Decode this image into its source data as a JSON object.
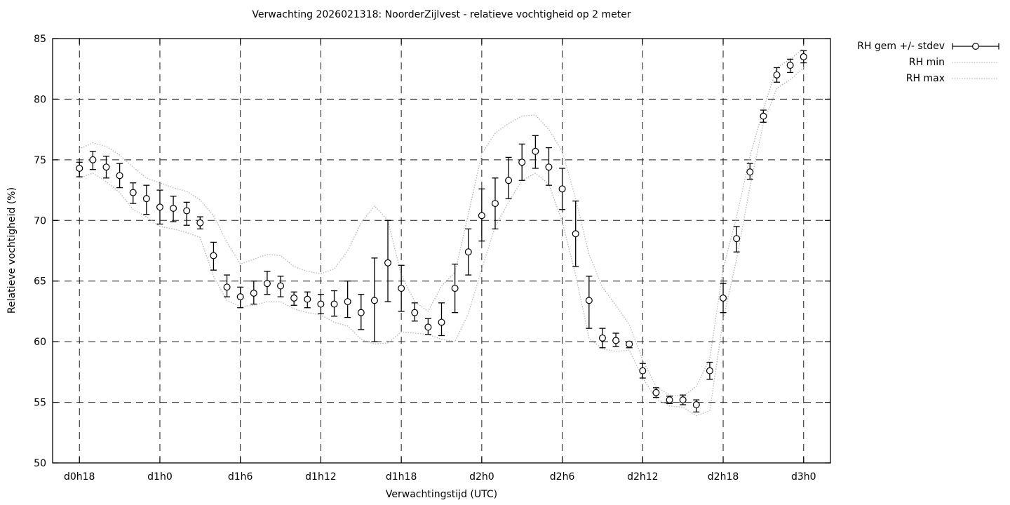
{
  "chart_data": {
    "type": "line",
    "title": "Verwachting 2026021318: NoorderZijlvest - relatieve vochtigheid op 2 meter",
    "xlabel": "Verwachtingstijd (UTC)",
    "ylabel": "Relatieve vochtigheid (%)",
    "ylim": [
      50,
      85
    ],
    "ytick_step": 5,
    "yticks": [
      50,
      55,
      60,
      65,
      70,
      75,
      80,
      85
    ],
    "xlim_hours": [
      -2,
      56
    ],
    "xticks": [
      {
        "label": "d0h18",
        "hour": 0
      },
      {
        "label": "d1h0",
        "hour": 6
      },
      {
        "label": "d1h6",
        "hour": 12
      },
      {
        "label": "d1h12",
        "hour": 18
      },
      {
        "label": "d1h18",
        "hour": 24
      },
      {
        "label": "d2h0",
        "hour": 30
      },
      {
        "label": "d2h6",
        "hour": 36
      },
      {
        "label": "d2h12",
        "hour": 42
      },
      {
        "label": "d2h18",
        "hour": 48
      },
      {
        "label": "d3h0",
        "hour": 54
      }
    ],
    "grid": true,
    "grid_color": "#1a1a1a",
    "legend_position": "outside-top-right",
    "hours": [
      0,
      1,
      2,
      3,
      4,
      5,
      6,
      7,
      8,
      9,
      10,
      11,
      12,
      13,
      14,
      15,
      16,
      17,
      18,
      19,
      20,
      21,
      22,
      23,
      24,
      25,
      26,
      27,
      28,
      29,
      30,
      31,
      32,
      33,
      34,
      35,
      36,
      37,
      38,
      39,
      40,
      41,
      42,
      43,
      44,
      45,
      46,
      47,
      48,
      49,
      50,
      51,
      52,
      53,
      54
    ],
    "series": [
      {
        "name": "RH gem +/- stdev",
        "style": "errorbars-points",
        "color": "#000000",
        "mean": [
          74.3,
          75.0,
          74.4,
          73.7,
          72.3,
          71.8,
          71.1,
          71.0,
          70.8,
          69.8,
          67.1,
          64.5,
          63.7,
          64.0,
          64.8,
          64.6,
          63.6,
          63.5,
          63.1,
          63.1,
          63.3,
          62.4,
          63.4,
          66.5,
          64.4,
          62.4,
          61.2,
          61.6,
          64.4,
          67.4,
          70.4,
          71.4,
          73.3,
          74.8,
          75.7,
          74.4,
          72.6,
          68.9,
          63.4,
          60.3,
          60.1,
          59.8,
          57.6,
          55.8,
          55.2,
          55.2,
          54.8,
          57.6,
          63.6,
          68.5,
          74.0,
          78.6,
          82.0,
          82.8,
          83.5
        ],
        "err_low": [
          73.6,
          74.2,
          73.5,
          72.7,
          71.4,
          70.5,
          69.7,
          69.9,
          69.6,
          69.3,
          65.9,
          63.7,
          62.8,
          63.1,
          63.9,
          63.7,
          63.0,
          62.8,
          62.3,
          62.1,
          62.0,
          61.0,
          60.0,
          63.3,
          62.5,
          61.7,
          60.6,
          60.5,
          62.4,
          65.5,
          68.3,
          69.3,
          71.8,
          73.3,
          74.3,
          72.9,
          70.9,
          66.2,
          61.1,
          59.5,
          59.6,
          59.5,
          57.0,
          55.4,
          54.9,
          54.8,
          54.2,
          56.9,
          62.4,
          67.4,
          73.4,
          78.1,
          81.4,
          82.2,
          83.0
        ],
        "err_high": [
          74.8,
          75.7,
          75.3,
          74.7,
          73.1,
          72.9,
          72.5,
          72.0,
          71.5,
          70.3,
          68.2,
          65.5,
          64.5,
          65.0,
          65.8,
          65.4,
          64.1,
          64.1,
          63.9,
          64.2,
          65.0,
          63.9,
          66.9,
          70.0,
          66.3,
          63.2,
          61.9,
          63.2,
          66.4,
          69.3,
          72.6,
          73.5,
          75.2,
          76.3,
          77.0,
          76.0,
          74.3,
          71.6,
          65.4,
          61.1,
          60.7,
          60.0,
          58.2,
          56.2,
          55.5,
          55.6,
          55.2,
          58.3,
          64.8,
          69.5,
          74.7,
          79.1,
          82.6,
          83.3,
          84.0
        ]
      },
      {
        "name": "RH min",
        "style": "dotted",
        "color": "#b4b4b4",
        "values": [
          73.5,
          73.9,
          73.2,
          72.3,
          70.9,
          70.3,
          69.5,
          69.3,
          69.0,
          68.6,
          65.4,
          63.4,
          62.9,
          63.0,
          63.3,
          63.3,
          62.7,
          62.4,
          62.2,
          61.6,
          61.3,
          60.2,
          59.8,
          59.9,
          60.8,
          60.7,
          60.6,
          60.2,
          60.0,
          62.3,
          66.0,
          69.5,
          71.5,
          73.3,
          73.9,
          73.0,
          69.9,
          65.5,
          60.3,
          59.4,
          59.2,
          59.3,
          57.0,
          55.3,
          54.7,
          54.6,
          53.9,
          54.3,
          61.8,
          66.8,
          72.8,
          78.0,
          80.9,
          81.6,
          82.6
        ]
      },
      {
        "name": "RH max",
        "style": "dotted",
        "color": "#b4b4b4",
        "values": [
          75.9,
          76.4,
          76.1,
          75.4,
          74.4,
          73.5,
          73.1,
          72.7,
          72.4,
          71.7,
          70.4,
          68.2,
          66.4,
          66.8,
          67.2,
          67.1,
          66.2,
          65.8,
          65.6,
          66.0,
          67.5,
          69.8,
          71.2,
          70.0,
          65.5,
          63.3,
          62.5,
          64.6,
          65.7,
          70.5,
          75.5,
          77.2,
          78.0,
          78.6,
          78.7,
          77.5,
          75.7,
          71.8,
          67.2,
          64.5,
          63.0,
          61.4,
          58.5,
          56.3,
          55.6,
          55.5,
          56.3,
          58.6,
          66.0,
          70.3,
          75.3,
          79.2,
          82.6,
          83.3,
          84.2
        ]
      }
    ]
  }
}
